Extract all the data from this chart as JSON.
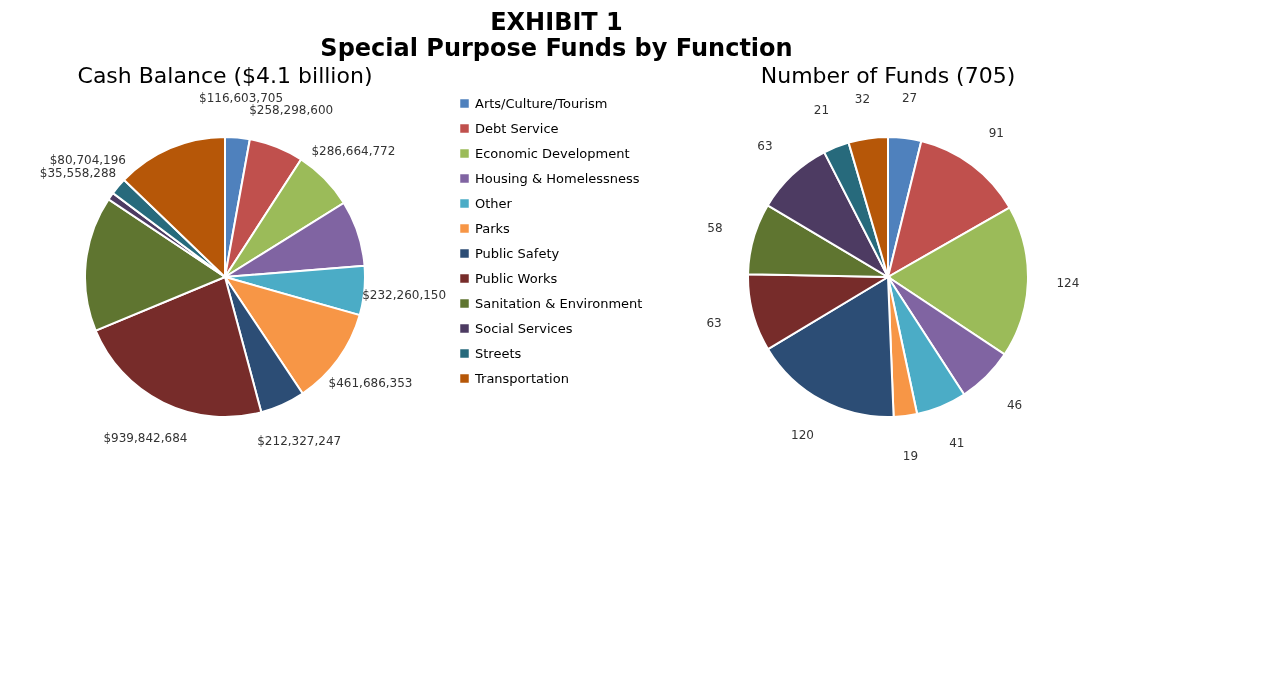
{
  "chart_data": [
    {
      "type": "pie",
      "title": "Cash Balance ($4.1 billion)",
      "annotations": [
        "EXHIBIT 1",
        "Special Purpose Funds by Function"
      ],
      "categories": [
        "Arts/Culture/Tourism",
        "Debt Service",
        "Economic Development",
        "Housing & Homelessness",
        "Other",
        "Parks",
        "Public Safety",
        "Public Works",
        "Sanitation & Environment",
        "Social Services",
        "Streets",
        "Transportation"
      ],
      "values": [
        116603705,
        258298600,
        286664772,
        311000000,
        232260150,
        461686353,
        212327247,
        939842684,
        640000000,
        35558288,
        80704196,
        525000000
      ],
      "value_labels": [
        "$116,603,705",
        "$258,298,600",
        "$286,664,772",
        null,
        "$232,260,150",
        "$461,686,353",
        "$212,327,247",
        "$939,842,684",
        null,
        "$35,558,288",
        "$80,704,196",
        null
      ],
      "colors": [
        "#4f81bd",
        "#c0504d",
        "#9bbb59",
        "#8064a2",
        "#4bacc6",
        "#f79646",
        "#2c4d75",
        "#772c2a",
        "#5f7530",
        "#4d3b62",
        "#276a7c",
        "#b65708"
      ],
      "legend": "right"
    },
    {
      "type": "pie",
      "title": "Number of Funds (705)",
      "categories": [
        null,
        null,
        null,
        null,
        null,
        null,
        null,
        null,
        null,
        null,
        null,
        null
      ],
      "values": [
        27,
        91,
        124,
        46,
        41,
        19,
        120,
        63,
        58,
        63,
        21,
        32
      ],
      "colors": [
        "#4f81bd",
        "#c0504d",
        "#9bbb59",
        "#8064a2",
        "#4bacc6",
        "#f79646",
        "#2c4d75",
        "#772c2a",
        "#5f7530",
        "#4d3b62",
        "#276a7c",
        "#b65708"
      ],
      "data_labels": true,
      "legend": false
    }
  ]
}
